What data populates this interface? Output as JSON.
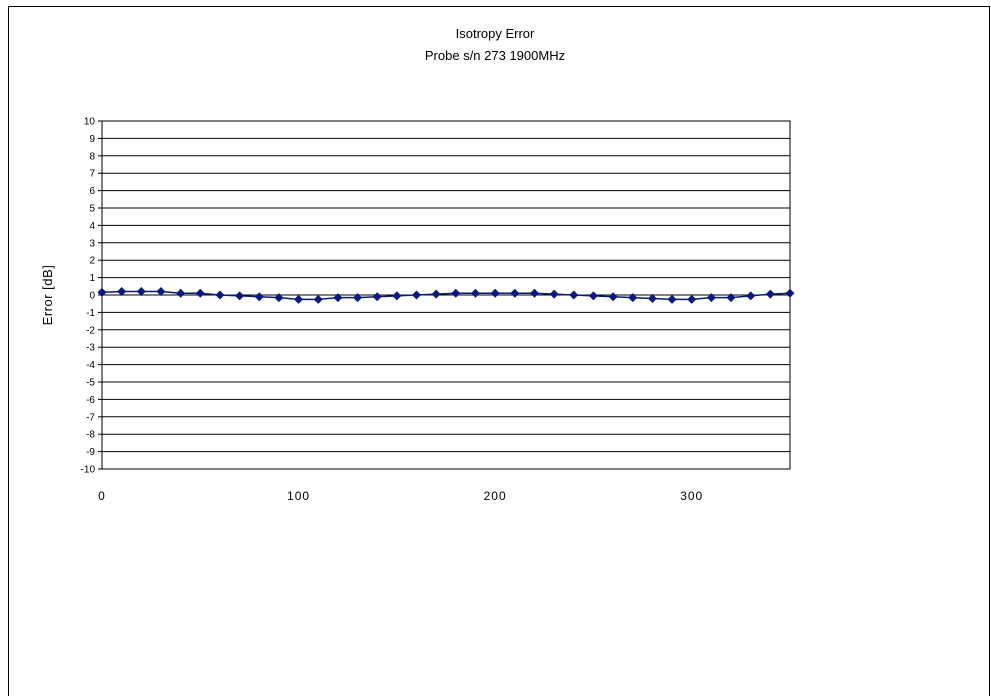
{
  "chart_data": {
    "type": "line",
    "title": "Isotropy Error",
    "subtitle": "Probe s/n 273 1900MHz",
    "xlabel": "",
    "ylabel": "Error [dB]",
    "xlim": [
      0,
      350
    ],
    "ylim": [
      -10,
      10
    ],
    "x_ticks": [
      0,
      100,
      200,
      300
    ],
    "y_ticks": [
      10,
      9,
      8,
      7,
      6,
      5,
      4,
      3,
      2,
      1,
      0,
      -1,
      -2,
      -3,
      -4,
      -5,
      -6,
      -7,
      -8,
      -9,
      -10
    ],
    "grid": true,
    "legend": "none",
    "series_color": "#0b1a7a",
    "series": [
      {
        "x": [
          0,
          10,
          20,
          30,
          40,
          50,
          60,
          70,
          80,
          90,
          100,
          110,
          120,
          130,
          140,
          150,
          160,
          170,
          180,
          190,
          200,
          210,
          220,
          230,
          240,
          250,
          260,
          270,
          280,
          290,
          300,
          310,
          320,
          330,
          340,
          350
        ],
        "y": [
          0.15,
          0.2,
          0.2,
          0.2,
          0.1,
          0.1,
          0.0,
          -0.05,
          -0.1,
          -0.15,
          -0.25,
          -0.25,
          -0.15,
          -0.15,
          -0.1,
          -0.05,
          0.0,
          0.05,
          0.1,
          0.1,
          0.1,
          0.1,
          0.1,
          0.05,
          0.0,
          -0.05,
          -0.1,
          -0.15,
          -0.2,
          -0.25,
          -0.25,
          -0.15,
          -0.15,
          -0.05,
          0.05,
          0.1
        ]
      }
    ]
  }
}
